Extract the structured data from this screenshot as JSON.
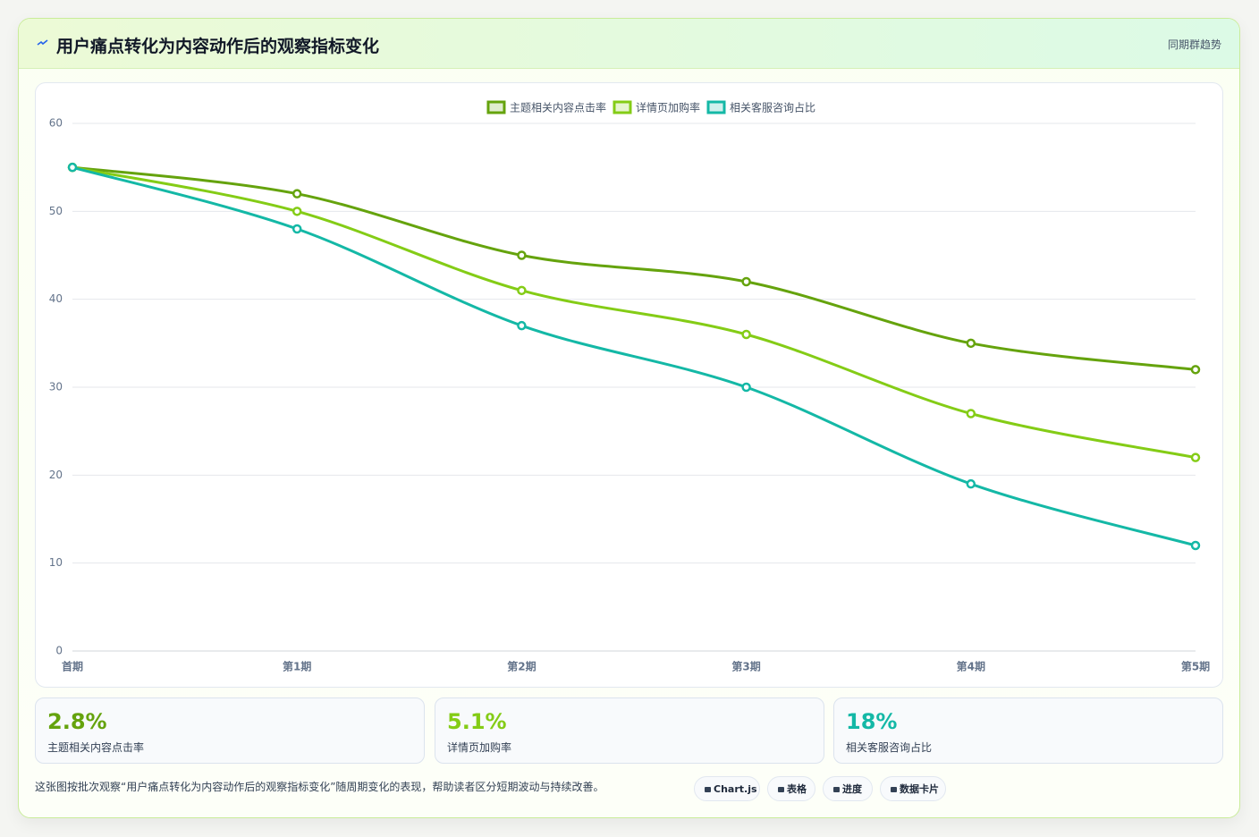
{
  "chart_data": {
    "type": "line",
    "title": "用户痛点转化为内容动作后的观察指标变化",
    "badge": "同期群趋势",
    "categories": [
      "首期",
      "第1期",
      "第2期",
      "第3期",
      "第4期",
      "第5期"
    ],
    "series": [
      {
        "name": "主题相关内容点击率",
        "color": "#65a30d",
        "values": [
          55,
          52,
          45,
          42,
          35,
          32
        ]
      },
      {
        "name": "详情页加购率",
        "color": "#84cc16",
        "values": [
          55,
          50,
          41,
          36,
          27,
          22
        ]
      },
      {
        "name": "相关客服咨询占比",
        "color": "#14b8a6",
        "values": [
          55,
          48,
          37,
          30,
          19,
          12
        ]
      }
    ],
    "ylim": [
      0,
      60
    ],
    "yticks": [
      0,
      10,
      20,
      30,
      40,
      50,
      60
    ],
    "grid": true,
    "legend": "top"
  },
  "stats": [
    {
      "value": "2.8%",
      "label": "主题相关内容点击率"
    },
    {
      "value": "5.1%",
      "label": "详情页加购率"
    },
    {
      "value": "18%",
      "label": "相关客服咨询占比"
    }
  ],
  "note": "这张图按批次观察“用户痛点转化为内容动作后的观察指标变化”随周期变化的表现，帮助读者区分短期波动与持续改善。",
  "tags": [
    "Chart.js",
    "表格",
    "进度",
    "数据卡片"
  ]
}
